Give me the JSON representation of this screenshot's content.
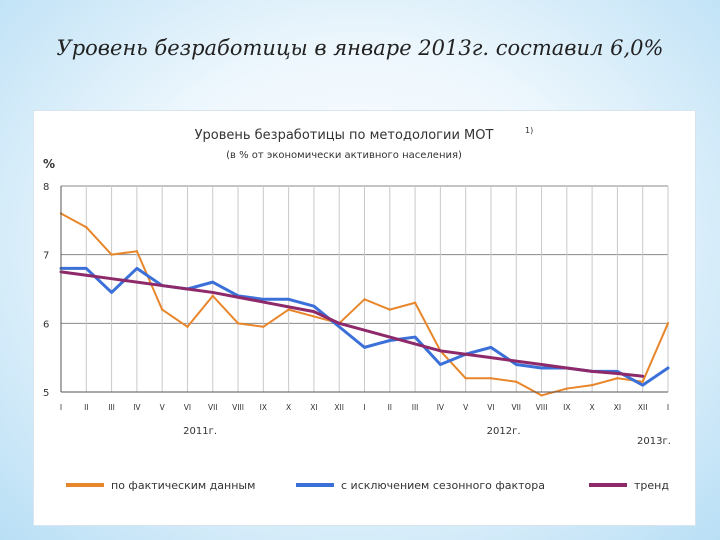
{
  "slide": {
    "title": "Уровень безработицы в январе 2013г. составил 6,0%"
  },
  "chart_data": {
    "type": "line",
    "title": "Уровень безработицы по методологии МОТ",
    "title_sup": "1)",
    "subtitle": "(в % от экономически активного населения)",
    "ylabel": "%",
    "ylim": [
      5,
      8
    ],
    "yticks": [
      5,
      6,
      7,
      8
    ],
    "grid": true,
    "legend_position": "bottom",
    "month_labels": [
      "I",
      "II",
      "III",
      "IV",
      "V",
      "VI",
      "VII",
      "VIII",
      "IX",
      "X",
      "XI",
      "XII",
      "I",
      "II",
      "III",
      "IV",
      "V",
      "VI",
      "VII",
      "VIII",
      "IX",
      "X",
      "XI",
      "XII",
      "I"
    ],
    "year_labels": [
      "2011г.",
      "2012г.",
      "2013г."
    ],
    "series": [
      {
        "name": "по фактическим данным",
        "color": "#e8862b",
        "values": [
          7.6,
          7.4,
          7.0,
          7.05,
          6.2,
          5.95,
          6.4,
          6.0,
          5.95,
          6.2,
          6.1,
          6.0,
          6.35,
          6.2,
          6.3,
          5.6,
          5.2,
          5.2,
          5.15,
          4.95,
          5.05,
          5.1,
          5.2,
          5.15,
          6.0
        ]
      },
      {
        "name": "с исключением сезонного фактора",
        "color": "#3a70d8",
        "values": [
          6.8,
          6.8,
          6.45,
          6.8,
          6.55,
          6.5,
          6.6,
          6.4,
          6.35,
          6.35,
          6.25,
          5.95,
          5.65,
          5.75,
          5.8,
          5.4,
          5.55,
          5.65,
          5.4,
          5.35,
          5.35,
          5.3,
          5.3,
          5.1,
          5.35
        ]
      },
      {
        "name": "тренд",
        "color": "#8e2a6a",
        "values": [
          6.75,
          6.7,
          6.65,
          6.6,
          6.55,
          6.5,
          6.45,
          6.38,
          6.31,
          6.24,
          6.17,
          6.0,
          5.9,
          5.8,
          5.7,
          5.6,
          5.55,
          5.5,
          5.45,
          5.4,
          5.35,
          5.3,
          5.27,
          5.23,
          null
        ]
      }
    ]
  }
}
